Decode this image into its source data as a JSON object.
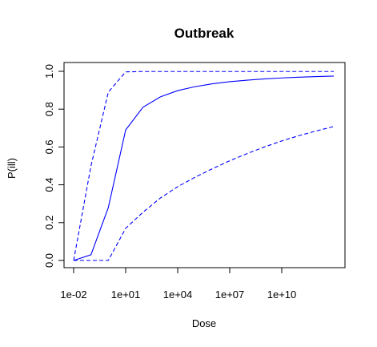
{
  "chart_data": {
    "type": "line",
    "title": "Outbreak",
    "xlabel": "Dose",
    "ylabel": "P(ill)",
    "x_scale": "log10",
    "xlim": [
      0.01,
      10000000000000
    ],
    "ylim": [
      0,
      1
    ],
    "grid": false,
    "legend": "none",
    "x_ticks": [
      {
        "value": 0.01,
        "label": "1e-02"
      },
      {
        "value": 10,
        "label": "1e+01"
      },
      {
        "value": 10000,
        "label": "1e+04"
      },
      {
        "value": 10000000,
        "label": "1e+07"
      },
      {
        "value": 10000000000,
        "label": "1e+10"
      }
    ],
    "y_ticks": [
      {
        "value": 0.0,
        "label": "0.0"
      },
      {
        "value": 0.2,
        "label": "0.2"
      },
      {
        "value": 0.4,
        "label": "0.4"
      },
      {
        "value": 0.6,
        "label": "0.6"
      },
      {
        "value": 0.8,
        "label": "0.8"
      },
      {
        "value": 1.0,
        "label": "1.0"
      }
    ],
    "x": [
      0.01,
      0.1,
      1,
      10,
      100,
      1000,
      10000,
      100000,
      1000000,
      10000000,
      100000000,
      1000000000,
      10000000000,
      100000000000,
      1000000000000,
      10000000000000
    ],
    "series": [
      {
        "color": "#0000ff",
        "linestyle": "solid",
        "values": [
          0.0,
          0.03,
          0.28,
          0.69,
          0.81,
          0.865,
          0.898,
          0.919,
          0.934,
          0.945,
          0.953,
          0.96,
          0.965,
          0.969,
          0.972,
          0.975
        ]
      },
      {
        "color": "#0000ff",
        "linestyle": "dashed",
        "values": [
          0.0,
          0.5,
          0.89,
          0.997,
          0.999,
          0.999,
          0.999,
          0.999,
          0.999,
          0.999,
          0.999,
          0.999,
          0.999,
          0.999,
          0.999,
          0.999
        ]
      },
      {
        "color": "#0000ff",
        "linestyle": "dashed",
        "values": [
          0.0,
          0.0,
          0.0,
          0.17,
          0.255,
          0.33,
          0.39,
          0.44,
          0.485,
          0.527,
          0.565,
          0.6,
          0.632,
          0.66,
          0.685,
          0.708
        ]
      }
    ]
  }
}
